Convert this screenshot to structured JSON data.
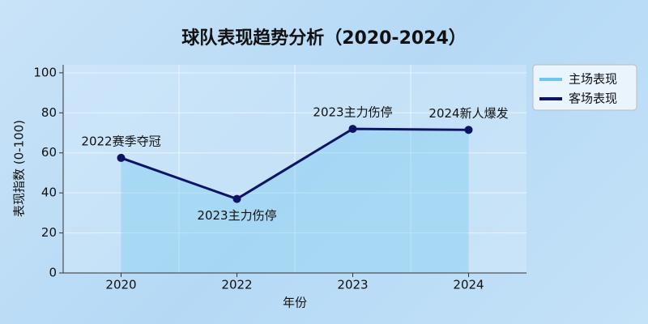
{
  "chart_data": {
    "type": "line",
    "title": "球队表现趋势分析（2020-2024）",
    "x_label": "年份",
    "y_label": "表现指数 (0-100)",
    "categories": [
      "2020",
      "2022",
      "2023",
      "2024"
    ],
    "series": [
      {
        "name": "主场表现",
        "color": "#6ec6ee",
        "fill": "area",
        "values": [
          57.5,
          37,
          72,
          71.5
        ]
      },
      {
        "name": "客场表现",
        "color": "#0d1466",
        "fill": "none",
        "values": [
          57.5,
          37,
          72,
          71.5
        ]
      }
    ],
    "annotations": [
      "2022赛季夺冠",
      "2023主力伤停",
      "2023主力伤停",
      "2024新人爆发"
    ],
    "ylim": [
      0,
      104
    ],
    "yticks": [
      0,
      20,
      40,
      60,
      80,
      100
    ],
    "grid": true,
    "legend": "upper right outside"
  }
}
